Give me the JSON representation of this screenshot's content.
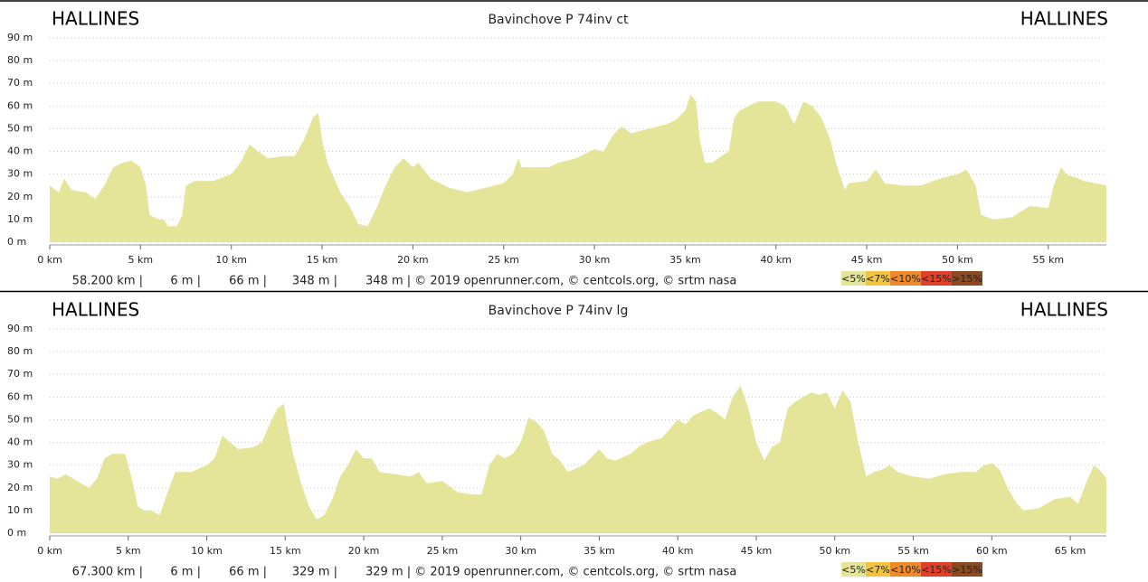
{
  "chart_data": [
    {
      "type": "area",
      "title": "Bavinchove P 74inv ct",
      "start_label": "HALLINES",
      "end_label": "HALLINES",
      "x": [
        0,
        0.5,
        0.8,
        1.2,
        2,
        2.5,
        3,
        3.5,
        4,
        4.5,
        5,
        5.3,
        5.5,
        6,
        6.3,
        6.5,
        7,
        7.3,
        7.5,
        8,
        9,
        10,
        10.5,
        11,
        11.5,
        12,
        13,
        13.5,
        14,
        14.5,
        14.8,
        15,
        15.3,
        16,
        16.5,
        17,
        17.5,
        18,
        18.5,
        19,
        19.5,
        20,
        20.3,
        21,
        22,
        23,
        24,
        25,
        25.5,
        25.8,
        26,
        27,
        27.5,
        28,
        29,
        30,
        30.5,
        31,
        31.5,
        32,
        33,
        34,
        34.5,
        35,
        35.3,
        35.6,
        35.8,
        36.1,
        36.5,
        37,
        37.4,
        37.7,
        38,
        38.5,
        39,
        40,
        40.5,
        41,
        41.5,
        42,
        42.5,
        43,
        43.3,
        43.8,
        44,
        45,
        45.5,
        46,
        47,
        48,
        49,
        50,
        50.5,
        51,
        51.3,
        52,
        53,
        54,
        55,
        55.3,
        55.7,
        56,
        57,
        58.2
      ],
      "values": [
        25,
        22,
        28,
        23,
        22,
        19,
        25,
        33,
        35,
        36,
        33,
        25,
        12,
        10,
        10,
        7,
        7,
        12,
        25,
        27,
        27,
        30,
        35,
        43,
        40,
        37,
        38,
        38,
        45,
        55,
        57,
        45,
        35,
        22,
        16,
        8,
        7,
        15,
        25,
        33,
        37,
        33,
        35,
        28,
        24,
        22,
        24,
        26,
        30,
        37,
        33,
        33,
        33,
        35,
        37,
        41,
        40,
        47,
        51,
        48,
        50,
        52,
        54,
        58,
        65,
        62,
        45,
        35,
        35,
        38,
        40,
        55,
        58,
        60,
        62,
        62,
        60,
        52,
        62,
        60,
        55,
        45,
        35,
        23,
        26,
        27,
        32,
        26,
        25,
        25,
        28,
        30,
        32,
        25,
        12,
        10,
        11,
        16,
        15,
        25,
        33,
        30,
        27,
        25
      ],
      "color": "#e5e599",
      "xlim": [
        0,
        58.2
      ],
      "xticks": [
        {
          "value": 0,
          "label": "0 km"
        },
        {
          "value": 5,
          "label": "5 km"
        },
        {
          "value": 10,
          "label": "10 km"
        },
        {
          "value": 15,
          "label": "15 km"
        },
        {
          "value": 20,
          "label": "20 km"
        },
        {
          "value": 25,
          "label": "25 km"
        },
        {
          "value": 30,
          "label": "30 km"
        },
        {
          "value": 35,
          "label": "35 km"
        },
        {
          "value": 40,
          "label": "40 km"
        },
        {
          "value": 45,
          "label": "45 km"
        },
        {
          "value": 50,
          "label": "50 km"
        },
        {
          "value": 55,
          "label": "55 km"
        }
      ],
      "ylim": [
        0,
        90
      ],
      "yticks": [
        {
          "value": 0,
          "label": "0 m"
        },
        {
          "value": 10,
          "label": "10 m"
        },
        {
          "value": 20,
          "label": "20 m"
        },
        {
          "value": 30,
          "label": "30 m"
        },
        {
          "value": 40,
          "label": "40 m"
        },
        {
          "value": 50,
          "label": "50 m"
        },
        {
          "value": 60,
          "label": "60 m"
        },
        {
          "value": 70,
          "label": "70 m"
        },
        {
          "value": 80,
          "label": "80 m"
        },
        {
          "value": 90,
          "label": "90 m"
        }
      ],
      "grid": true,
      "footer": [
        "58.200 km |",
        "6 m |",
        "66 m |",
        "348 m |",
        "348 m | © 2019 openrunner.com, © centcols.org, © srtm nasa"
      ],
      "legend": [
        {
          "label": "<5%",
          "color": "#e5e599"
        },
        {
          "label": "<7%",
          "color": "#f2c440"
        },
        {
          "label": "<10%",
          "color": "#ee8a2c"
        },
        {
          "label": "<15%",
          "color": "#e0402a"
        },
        {
          "label": ">15%",
          "color": "#8b4a22"
        }
      ]
    },
    {
      "type": "area",
      "title": "Bavinchove P 74inv lg",
      "start_label": "HALLINES",
      "end_label": "HALLINES",
      "x": [
        0,
        0.5,
        1,
        2,
        2.5,
        3,
        3.5,
        4,
        4.8,
        5.3,
        5.6,
        6,
        6.5,
        7,
        7.5,
        8,
        9,
        10,
        10.5,
        11,
        11.5,
        12,
        13,
        13.5,
        14,
        14.5,
        14.9,
        15.2,
        15.5,
        16,
        16.5,
        17,
        17.5,
        18,
        18.5,
        19,
        19.5,
        20,
        20.5,
        21,
        22,
        23,
        23.5,
        24,
        25,
        26,
        27,
        27.5,
        28,
        28.5,
        29,
        29.5,
        30,
        30.5,
        31,
        31.5,
        32,
        32.5,
        33,
        34,
        35,
        35.5,
        36,
        37,
        37.5,
        38,
        39,
        39.5,
        40,
        40.5,
        41,
        42,
        42.5,
        43,
        43.5,
        44,
        44.5,
        45,
        45.5,
        46,
        46.5,
        47,
        47.5,
        48,
        48.5,
        49,
        49.5,
        50,
        50.5,
        51,
        51.5,
        52,
        52.5,
        53,
        53.5,
        54,
        55,
        56,
        57,
        58,
        59,
        59.5,
        60,
        60.5,
        61,
        61.5,
        62,
        63,
        64,
        65,
        65.5,
        66,
        66.5,
        67,
        67.3
      ],
      "values": [
        25,
        24,
        26,
        22,
        20,
        24,
        33,
        35,
        35,
        22,
        12,
        10,
        10,
        8,
        18,
        27,
        27,
        30,
        33,
        43,
        40,
        37,
        38,
        40,
        48,
        55,
        57,
        45,
        35,
        22,
        12,
        6,
        8,
        15,
        25,
        30,
        37,
        33,
        33,
        27,
        26,
        25,
        27,
        22,
        23,
        18,
        17,
        17,
        30,
        35,
        33,
        35,
        40,
        51,
        49,
        45,
        35,
        32,
        27,
        30,
        37,
        33,
        32,
        35,
        38,
        40,
        42,
        46,
        50,
        48,
        52,
        55,
        53,
        50,
        60,
        65,
        55,
        40,
        32,
        38,
        40,
        55,
        58,
        60,
        62,
        61,
        62,
        55,
        63,
        58,
        40,
        25,
        27,
        28,
        30,
        27,
        25,
        24,
        26,
        27,
        27,
        30,
        31,
        28,
        20,
        14,
        10,
        11,
        15,
        16,
        13,
        22,
        30,
        27,
        24
      ],
      "color": "#e5e599",
      "xlim": [
        0,
        67.3
      ],
      "xticks": [
        {
          "value": 0,
          "label": "0 km"
        },
        {
          "value": 5,
          "label": "5 km"
        },
        {
          "value": 10,
          "label": "10 km"
        },
        {
          "value": 15,
          "label": "15 km"
        },
        {
          "value": 20,
          "label": "20 km"
        },
        {
          "value": 25,
          "label": "25 km"
        },
        {
          "value": 30,
          "label": "30 km"
        },
        {
          "value": 35,
          "label": "35 km"
        },
        {
          "value": 40,
          "label": "40 km"
        },
        {
          "value": 45,
          "label": "45 km"
        },
        {
          "value": 50,
          "label": "50 km"
        },
        {
          "value": 55,
          "label": "55 km"
        },
        {
          "value": 60,
          "label": "60 km"
        },
        {
          "value": 65,
          "label": "65 km"
        }
      ],
      "ylim": [
        0,
        90
      ],
      "yticks": [
        {
          "value": 0,
          "label": "0 m"
        },
        {
          "value": 10,
          "label": "10 m"
        },
        {
          "value": 20,
          "label": "20 m"
        },
        {
          "value": 30,
          "label": "30 m"
        },
        {
          "value": 40,
          "label": "40 m"
        },
        {
          "value": 50,
          "label": "50 m"
        },
        {
          "value": 60,
          "label": "60 m"
        },
        {
          "value": 70,
          "label": "70 m"
        },
        {
          "value": 80,
          "label": "80 m"
        },
        {
          "value": 90,
          "label": "90 m"
        }
      ],
      "grid": true,
      "footer": [
        "67.300 km |",
        "6 m |",
        "66 m |",
        "329 m |",
        "329 m | © 2019 openrunner.com, © centcols.org, © srtm nasa"
      ],
      "legend": [
        {
          "label": "<5%",
          "color": "#e5e599"
        },
        {
          "label": "<7%",
          "color": "#f2c440"
        },
        {
          "label": "<10%",
          "color": "#ee8a2c"
        },
        {
          "label": "<15%",
          "color": "#e0402a"
        },
        {
          "label": ">15%",
          "color": "#8b4a22"
        }
      ]
    }
  ]
}
